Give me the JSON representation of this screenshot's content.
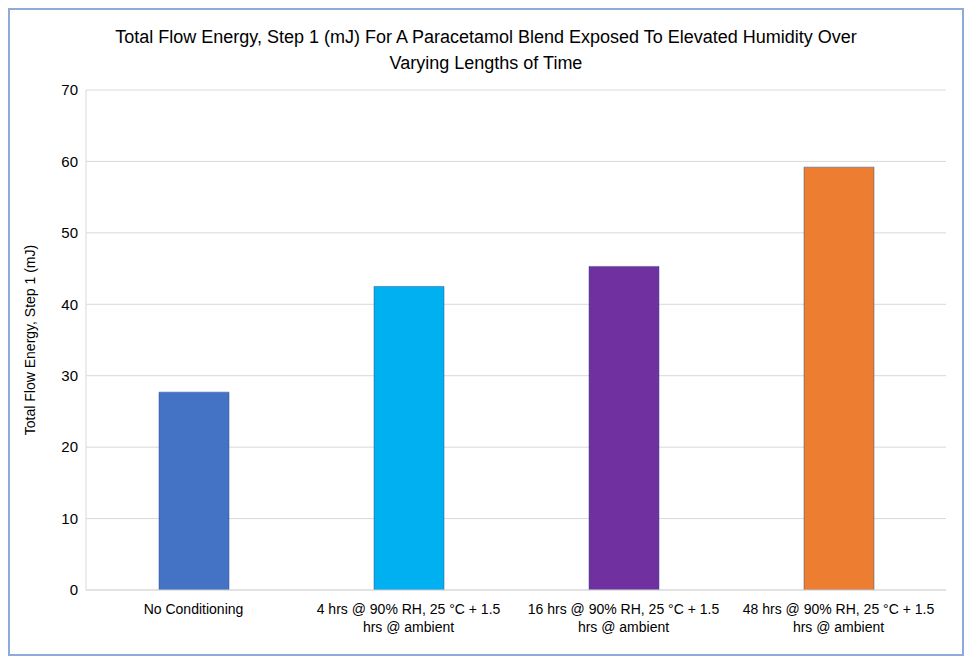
{
  "chart_data": {
    "type": "bar",
    "title": "Total Flow Energy, Step 1 (mJ) For A Paracetamol Blend Exposed To Elevated Humidity Over Varying Lengths of Time",
    "y_label": "Total Flow Energy, Step 1 (mJ)",
    "categories": [
      "No Conditioning",
      "4 hrs @ 90% RH, 25 °C + 1.5 hrs @ ambient",
      "16 hrs @ 90% RH, 25 °C + 1.5 hrs @ ambient",
      "48 hrs @ 90% RH, 25 °C + 1.5 hrs @ ambient"
    ],
    "values": [
      27.7,
      42.5,
      45.3,
      59.2
    ],
    "colors": [
      "#4472c4",
      "#00b0f0",
      "#7030a0",
      "#ed7d31"
    ],
    "ylim": [
      0,
      70
    ],
    "yticks": [
      0,
      10,
      20,
      30,
      40,
      50,
      60,
      70
    ],
    "grid": true
  }
}
